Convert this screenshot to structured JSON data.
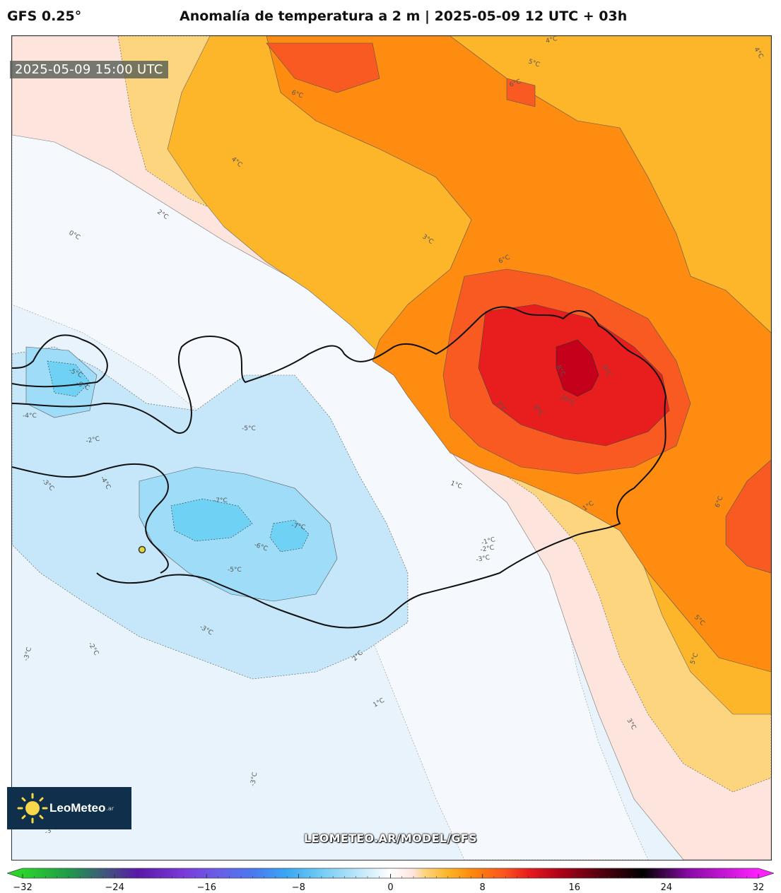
{
  "header": {
    "model": "GFS 0.25°",
    "title": "Anomalía de temperatura a 2 m | 2025-05-09 12 UTC + 03h"
  },
  "map": {
    "valid_time": "2025-05-09 15:00 UTC",
    "contour_labels": [
      "4°C",
      "5°C",
      "6°C",
      "6°C",
      "4°C",
      "4°C",
      "2°C",
      "0°C",
      "3°C",
      "6°C",
      "8°C",
      "9°C",
      "7°C",
      "8°C",
      "10°C",
      "5°C",
      "-5°C",
      "-6°C",
      "-4°C",
      "-5°C",
      "-2°C",
      "-4°C",
      "-3°C",
      "-7°C",
      "-7°C",
      "-6°C",
      "-5°C",
      "1°C",
      "1°C",
      "-1°C",
      "-2°C",
      "-3°C",
      "6°C",
      "5°C",
      "-3°C",
      "-2°C",
      "-3°C",
      "2°C",
      "1°C",
      "3°C",
      "-3°C",
      "-3°C"
    ],
    "station_marker": "location-marker",
    "colors": {
      "cold_strong": "#6fd2f5",
      "cold_mid": "#9fdcf7",
      "cold_light": "#c8e8fa",
      "near_zero": "#f4f8fc",
      "warm_light": "#fde4dc",
      "warm_yellow": "#fdd37c",
      "warm_orange": "#fdb528",
      "warm_deep": "#fd8a0c",
      "hot": "#f9521e",
      "very_hot": "#e81c1c",
      "extreme": "#c4001a"
    }
  },
  "branding": {
    "logo_name": "LeoMeteo",
    "logo_suffix": ".ar",
    "watermark": "LEOMETEO.AR/MODEL/GFS"
  },
  "colorbar": {
    "ticks": [
      "−32",
      "−24",
      "−16",
      "−8",
      "0",
      "8",
      "16",
      "24",
      "32"
    ],
    "min": -32,
    "max": 32,
    "stops": [
      {
        "value": -32,
        "color": "#2ad42a"
      },
      {
        "value": -28,
        "color": "#1f9a4a"
      },
      {
        "value": -25,
        "color": "#3d5a7a"
      },
      {
        "value": -22,
        "color": "#5a18a8"
      },
      {
        "value": -18,
        "color": "#7a3ad8"
      },
      {
        "value": -15,
        "color": "#6a5ee8"
      },
      {
        "value": -12,
        "color": "#4a78f0"
      },
      {
        "value": -9,
        "color": "#3aa8f2"
      },
      {
        "value": -6,
        "color": "#72ccf5"
      },
      {
        "value": -3,
        "color": "#b8e4fa"
      },
      {
        "value": 0,
        "color": "#ffffff"
      },
      {
        "value": 2,
        "color": "#fde4dc"
      },
      {
        "value": 3,
        "color": "#fdd37c"
      },
      {
        "value": 5,
        "color": "#fdb528"
      },
      {
        "value": 7,
        "color": "#fd8a0c"
      },
      {
        "value": 10,
        "color": "#f9521e"
      },
      {
        "value": 12,
        "color": "#e81c1c"
      },
      {
        "value": 15,
        "color": "#a80018"
      },
      {
        "value": 18,
        "color": "#5a0010"
      },
      {
        "value": 22,
        "color": "#000000"
      },
      {
        "value": 26,
        "color": "#8a0aa8"
      },
      {
        "value": 32,
        "color": "#ff20ff"
      }
    ]
  }
}
